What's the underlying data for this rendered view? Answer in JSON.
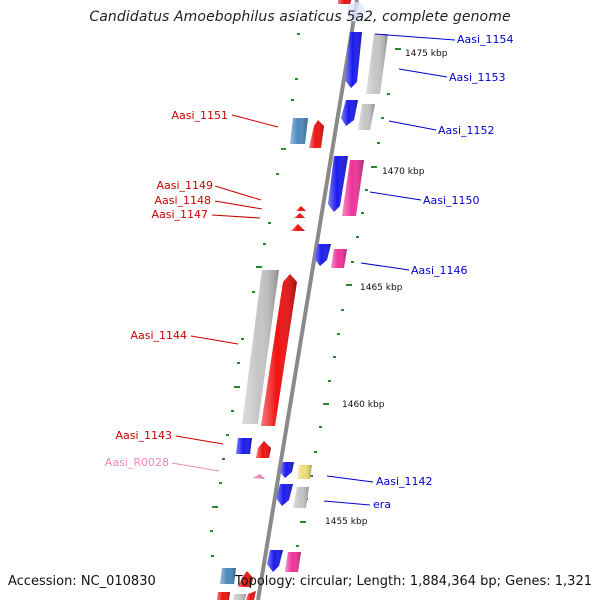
{
  "title": "Candidatus Amoebophilus asiaticus 5a2, complete genome",
  "footer": {
    "accession": "Accession: NC_010830",
    "topology": "Topology: circular; Length: 1,884,364 bp; Genes: 1,321"
  },
  "colors": {
    "backbone": "#8a8a8a",
    "tick": "#2a8a2a",
    "label_blue": "#0000cc",
    "label_red": "#cc0000",
    "label_pink": "#ee88bb",
    "gene_blue": "#1a1aee",
    "gene_red": "#ee1111",
    "gene_gray": "#c4c4c4",
    "gene_magenta": "#ee3399",
    "gene_steelblue": "#4a88bb",
    "gene_yellow": "#eedd77",
    "gene_pink": "#ee88bb"
  },
  "kbp_labels": [
    "1475 kbp",
    "1470 kbp",
    "1465 kbp",
    "1460 kbp",
    "1455 kbp"
  ],
  "gene_labels_right": [
    "Aasi_1154",
    "Aasi_1153",
    "Aasi_1152",
    "Aasi_1150",
    "Aasi_1146",
    "Aasi_1142",
    "era"
  ],
  "gene_labels_left": [
    "Aasi_1151",
    "Aasi_1149",
    "Aasi_1148",
    "Aasi_1147",
    "Aasi_1144",
    "Aasi_1143"
  ],
  "rna_labels": [
    "Aasi_R0028"
  ]
}
